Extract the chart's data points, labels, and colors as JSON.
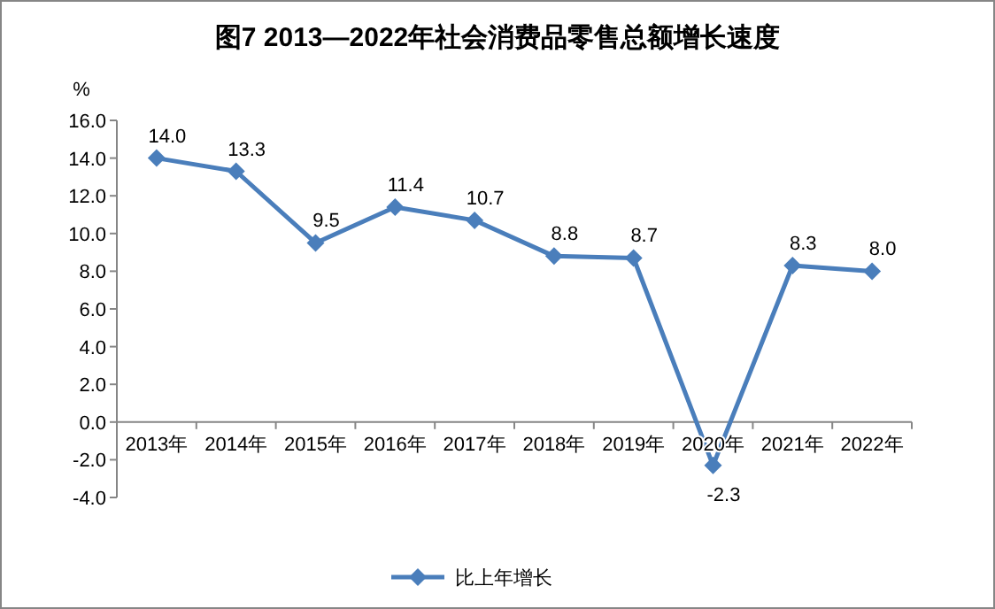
{
  "chart_data": {
    "type": "line",
    "title": "图7  2013—2022年社会消费品零售总额增长速度",
    "ylabel": "%",
    "categories": [
      "2013年",
      "2014年",
      "2015年",
      "2016年",
      "2017年",
      "2018年",
      "2019年",
      "2020年",
      "2021年",
      "2022年"
    ],
    "series": [
      {
        "name": "比上年增长",
        "color": "#4a7ebb",
        "values": [
          14.0,
          13.3,
          9.5,
          11.4,
          10.7,
          8.8,
          8.7,
          -2.3,
          8.3,
          8.0
        ]
      }
    ],
    "ylim": [
      -4,
      16
    ],
    "yticks": [
      {
        "value": -4,
        "label": "-4.0"
      },
      {
        "value": -2,
        "label": "-2.0"
      },
      {
        "value": 0,
        "label": "0.0"
      },
      {
        "value": 2,
        "label": "2.0"
      },
      {
        "value": 4,
        "label": "4.0"
      },
      {
        "value": 6,
        "label": "6.0"
      },
      {
        "value": 8,
        "label": "8.0"
      },
      {
        "value": 10,
        "label": "10.0"
      },
      {
        "value": 12,
        "label": "12.0"
      },
      {
        "value": 14,
        "label": "14.0"
      },
      {
        "value": 16,
        "label": "16.0"
      }
    ],
    "marker": "diamond",
    "line_style": "solid",
    "value_labels": [
      "14.0",
      "13.3",
      "9.5",
      "11.4",
      "10.7",
      "8.8",
      "8.7",
      "-2.3",
      "8.3",
      "8.0"
    ],
    "legend": "bottom",
    "grid": false
  }
}
